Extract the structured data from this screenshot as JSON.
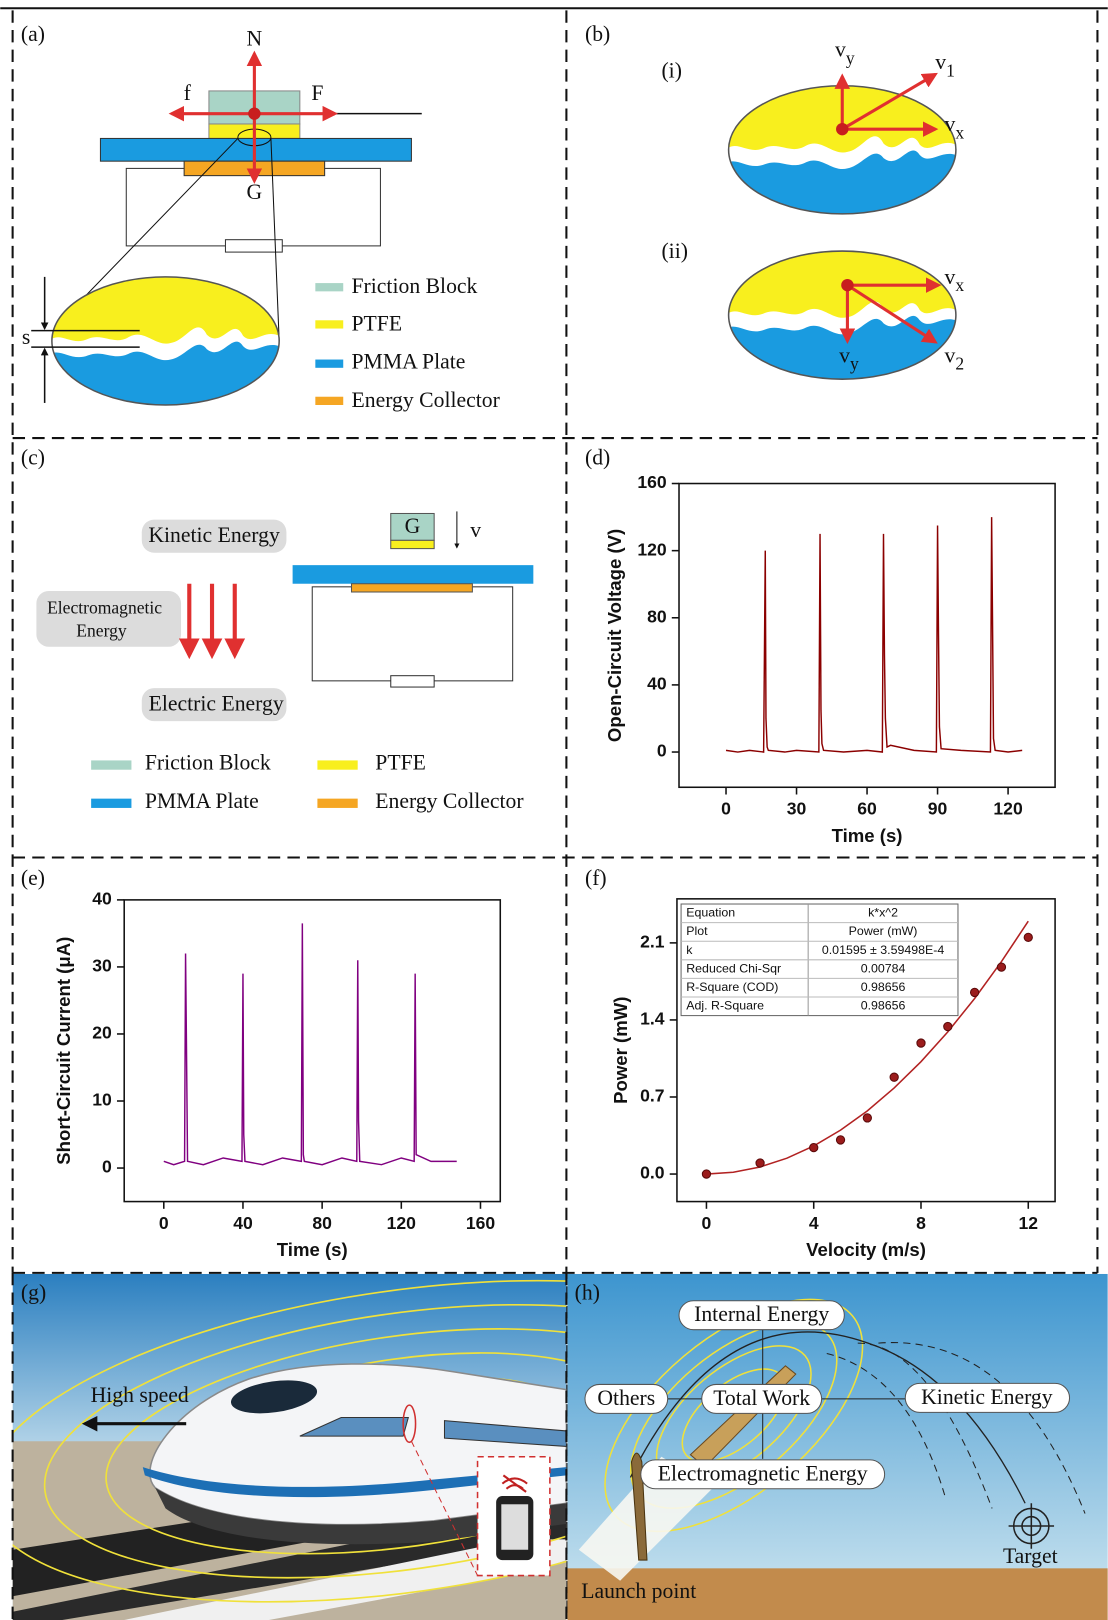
{
  "panel_a": {
    "label": "(a)",
    "forces": {
      "N": "N",
      "f": "f",
      "F": "F",
      "G": "G"
    },
    "gap": "s",
    "legend": [
      "Friction Block",
      "PTFE",
      "PMMA Plate",
      "Energy Collector"
    ]
  },
  "panel_b": {
    "label": "(b)",
    "case_i": {
      "label": "(i)",
      "vectors": [
        {
          "symbol": "v",
          "sub": "y"
        },
        {
          "symbol": "v",
          "sub": "1"
        },
        {
          "symbol": "v",
          "sub": "x"
        }
      ]
    },
    "case_ii": {
      "label": "(ii)",
      "vectors": [
        {
          "symbol": "v",
          "sub": "x"
        },
        {
          "symbol": "v",
          "sub": "y"
        },
        {
          "symbol": "v",
          "sub": "2"
        }
      ]
    }
  },
  "panel_c": {
    "label": "(c)",
    "kinetic": "Kinetic Energy",
    "electromagnetic": [
      "Electromagnetic",
      "Energy"
    ],
    "electric": "Electric Energy",
    "block": "G",
    "velocity": "v",
    "legend": [
      "Friction Block",
      "PTFE",
      "PMMA Plate",
      "Energy Collector"
    ]
  },
  "panel_g": {
    "label": "(g)",
    "motion": "High speed"
  },
  "panel_h": {
    "label": "(h)",
    "internal": "Internal Energy",
    "others": "Others",
    "total": "Total Work",
    "kinetic": "Kinetic Energy",
    "electromagnetic": "Electromagnetic Energy",
    "target": "Target",
    "launch": "Launch point"
  },
  "chart_data": [
    {
      "panel_label": "(d)",
      "type": "line",
      "xlabel": "Time (s)",
      "ylabel": "Open-Circuit Voltage (V)",
      "xlim": [
        -20,
        140
      ],
      "ylim": [
        -21,
        160
      ],
      "xticks": [
        0,
        30,
        60,
        90,
        120
      ],
      "yticks": [
        0,
        40,
        80,
        120,
        160
      ],
      "series": [
        {
          "color": "#8b0000",
          "x": [
            0,
            5,
            10,
            16,
            16.7,
            17,
            17.5,
            18,
            25,
            30,
            39.5,
            40,
            40.4,
            40.8,
            41.5,
            50,
            60,
            66.5,
            67,
            67.4,
            67.8,
            68.5,
            70,
            80,
            89.5,
            90,
            90.4,
            90.8,
            91.5,
            100,
            112.5,
            113,
            113.4,
            113.8,
            114.5,
            120,
            126
          ],
          "values": [
            1,
            0,
            1,
            0,
            120,
            20,
            3,
            1,
            0,
            1,
            0,
            130,
            25,
            5,
            1,
            0,
            1,
            0,
            130,
            58,
            20,
            3,
            4,
            1,
            0,
            135,
            70,
            15,
            2,
            1,
            0,
            140,
            75,
            8,
            1,
            0,
            1
          ]
        }
      ]
    },
    {
      "panel_label": "(e)",
      "type": "line",
      "xlabel": "Time (s)",
      "ylabel": "Short-Circuit Current (μA)",
      "xlim": [
        -20,
        170
      ],
      "ylim": [
        -5,
        40
      ],
      "xticks": [
        0,
        40,
        80,
        120,
        160
      ],
      "yticks": [
        0,
        10,
        20,
        30,
        40
      ],
      "series": [
        {
          "color": "#800080",
          "x": [
            0,
            5,
            10.5,
            11,
            11.4,
            12,
            20,
            30,
            39.5,
            40,
            40.4,
            41,
            50,
            60,
            69.5,
            70,
            70.5,
            71,
            80,
            90,
            97.5,
            98,
            98.4,
            99,
            110,
            120,
            126.5,
            127,
            127.5,
            135,
            148
          ],
          "values": [
            1,
            0.5,
            1,
            32,
            20,
            1,
            0.5,
            1.5,
            1,
            29,
            5,
            1,
            0.5,
            1.5,
            1,
            36.5,
            2,
            1,
            0.5,
            1.5,
            1,
            31,
            7,
            1,
            0.5,
            1.5,
            1,
            29,
            2,
            1,
            1
          ]
        }
      ]
    },
    {
      "panel_label": "(f)",
      "type": "scatter",
      "xlabel": "Velocity (m/s)",
      "ylabel": "Power (mW)",
      "xlim": [
        -1.1,
        13
      ],
      "ylim": [
        -0.25,
        2.5
      ],
      "xticks": [
        0,
        4,
        8,
        12
      ],
      "yticks": [
        {
          "value": 0,
          "label": "0.0"
        },
        0.7,
        1.4,
        2.1
      ],
      "color": "#9b1c1c",
      "x": [
        0,
        2,
        4,
        5,
        6,
        7,
        8,
        9,
        10,
        11,
        12
      ],
      "values": [
        0,
        0.1,
        0.24,
        0.31,
        0.51,
        0.88,
        1.19,
        1.34,
        1.65,
        1.88,
        2.15
      ],
      "fit": {
        "color": "#b22222",
        "x": [
          0,
          1,
          2,
          3,
          4,
          5,
          6,
          7,
          8,
          9,
          10,
          11,
          12
        ],
        "values": [
          0,
          0.016,
          0.064,
          0.144,
          0.255,
          0.399,
          0.574,
          0.782,
          1.021,
          1.292,
          1.595,
          1.93,
          2.297
        ]
      },
      "table": [
        [
          "Equation",
          "k*x^2"
        ],
        [
          "Plot",
          "Power (mW)"
        ],
        [
          "k",
          "0.01595 ± 3.59498E-4"
        ],
        [
          "Reduced Chi-Sqr",
          "0.00784"
        ],
        [
          "R-Square (COD)",
          "0.98656"
        ],
        [
          "Adj. R-Square",
          "0.98656"
        ]
      ]
    }
  ]
}
